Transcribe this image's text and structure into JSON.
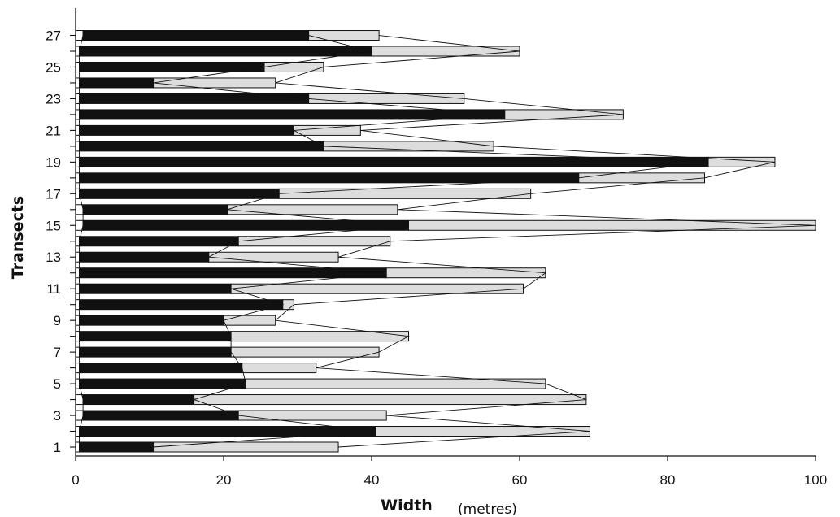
{
  "chart_data": {
    "type": "bar",
    "orientation": "horizontal",
    "stacked": true,
    "xlabel": "Width",
    "xlabel_unit": "(metres)",
    "ylabel": "Transects",
    "xlim": [
      0,
      100
    ],
    "x_ticks": [
      0,
      20,
      40,
      60,
      80,
      100
    ],
    "y_tick_labels": [
      "1",
      "3",
      "5",
      "7",
      "9",
      "11",
      "13",
      "15",
      "17",
      "19",
      "21",
      "23",
      "25",
      "27"
    ],
    "categories": [
      1,
      2,
      3,
      4,
      5,
      6,
      7,
      8,
      9,
      10,
      11,
      12,
      13,
      14,
      15,
      16,
      17,
      18,
      19,
      20,
      21,
      22,
      23,
      24,
      25,
      26,
      27
    ],
    "grid": false,
    "legend": "none",
    "series": [
      {
        "color": "#ffffff",
        "values": [
          0.5,
          0.5,
          1.0,
          1.0,
          0.5,
          0.5,
          0.5,
          0.5,
          0.5,
          0.5,
          0.5,
          0.5,
          0.5,
          0.5,
          1.0,
          1.0,
          0.5,
          0.5,
          0.5,
          0.5,
          0.5,
          0.5,
          0.5,
          0.5,
          0.5,
          0.5,
          1.0
        ]
      },
      {
        "color": "#111111",
        "values": [
          10.0,
          40.0,
          21.0,
          15.0,
          22.5,
          22.0,
          20.5,
          20.5,
          19.5,
          27.5,
          20.5,
          41.5,
          17.5,
          21.5,
          44.0,
          19.5,
          27.0,
          67.5,
          85.0,
          33.0,
          29.0,
          57.5,
          31.0,
          10.0,
          25.0,
          39.5,
          30.5
        ]
      },
      {
        "color": "#dddddd",
        "values": [
          25.0,
          29.0,
          20.0,
          53.0,
          40.5,
          10.0,
          20.0,
          24.0,
          7.0,
          1.5,
          39.5,
          21.5,
          17.5,
          20.5,
          55.0,
          23.0,
          34.0,
          17.0,
          9.0,
          23.0,
          9.0,
          16.0,
          21.0,
          16.5,
          8.0,
          20.0,
          9.5
        ]
      }
    ]
  }
}
